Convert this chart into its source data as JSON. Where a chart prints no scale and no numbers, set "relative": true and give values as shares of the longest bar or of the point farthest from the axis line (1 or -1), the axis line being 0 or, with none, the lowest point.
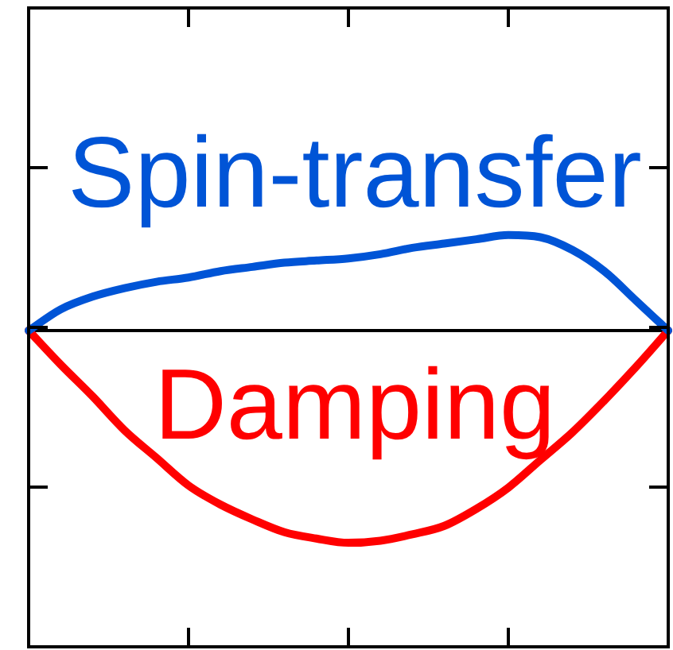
{
  "chart_data": {
    "type": "line",
    "relative": true,
    "categories": [
      null,
      null,
      null,
      null,
      null,
      null,
      null,
      null,
      null,
      null,
      null,
      null,
      null,
      null,
      null,
      null,
      null,
      null,
      null,
      null,
      null
    ],
    "series": [
      {
        "name": "Spin-transfer",
        "color": "#0054d6",
        "values": [
          0,
          0.1,
          0.16,
          0.2,
          0.23,
          0.25,
          0.28,
          0.3,
          0.32,
          0.33,
          0.34,
          0.36,
          0.39,
          0.41,
          0.43,
          0.45,
          0.44,
          0.38,
          0.28,
          0.14,
          0
        ]
      },
      {
        "name": "Damping",
        "color": "#ff0000",
        "values": [
          0,
          -0.16,
          -0.31,
          -0.47,
          -0.6,
          -0.73,
          -0.82,
          -0.89,
          -0.95,
          -0.98,
          -1,
          -0.99,
          -0.96,
          -0.92,
          -0.84,
          -0.74,
          -0.61,
          -0.48,
          -0.33,
          -0.17,
          0
        ]
      }
    ],
    "ref_lines": [
      {
        "axis": "y",
        "value": 0,
        "color": "#000000"
      }
    ],
    "legend": false,
    "marker": "none",
    "line_style": "solid"
  }
}
